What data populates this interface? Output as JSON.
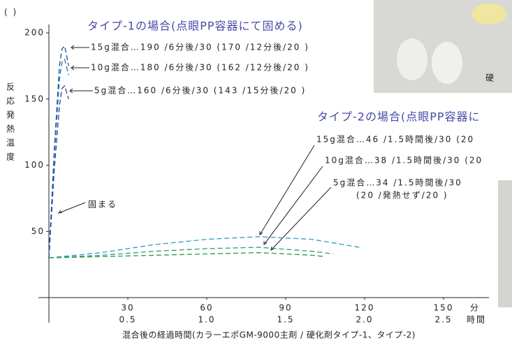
{
  "chart_data": {
    "type": "line",
    "y_unit": "(   )",
    "y_label": "反応発熱温度",
    "x_label": "混合後の経過時間(カラーエポGM-9000主剤 / 硬化剤タイプ-1、タイプ-2)",
    "x_unit": "分",
    "x_unit2": "時間",
    "xlim": [
      0,
      160
    ],
    "ylim": [
      0,
      200
    ],
    "xticks": [
      30,
      60,
      90,
      120,
      150
    ],
    "xtick_hours": [
      "0.5",
      "1.0",
      "1.5",
      "2.0",
      "2.5"
    ],
    "yticks": [
      50,
      100,
      150,
      200
    ],
    "series": [
      {
        "color": "#1a4a9a",
        "x": [
          0,
          2,
          4,
          5,
          6,
          7.5
        ],
        "values": [
          30,
          110,
          175,
          188,
          190,
          175
        ]
      },
      {
        "color": "#1a7ab0",
        "x": [
          0,
          2,
          4,
          5,
          6,
          7.5
        ],
        "values": [
          30,
          105,
          165,
          178,
          180,
          168
        ]
      },
      {
        "color": "#2a3a9a",
        "x": [
          0,
          2,
          4,
          5,
          6,
          7.5
        ],
        "values": [
          30,
          95,
          145,
          158,
          160,
          150
        ]
      },
      {
        "color": "#2aa0c0",
        "x": [
          0,
          20,
          40,
          60,
          80,
          100,
          118
        ],
        "values": [
          30,
          34,
          40,
          44,
          46,
          44,
          38
        ]
      },
      {
        "color": "#2a9a80",
        "x": [
          0,
          20,
          40,
          60,
          80,
          100,
          108
        ],
        "values": [
          30,
          32,
          35,
          37,
          38,
          35,
          33
        ]
      },
      {
        "color": "#2a9a40",
        "x": [
          0,
          20,
          40,
          60,
          80,
          100,
          105
        ],
        "values": [
          30,
          31,
          32,
          33,
          34,
          32,
          31
        ]
      }
    ],
    "annotations": [
      "タイプ-1の場合(点眼PP容器にて固める)",
      "15g混合…190 /6分後/30 (170 /12分後/20 )",
      "10g混合…180 /6分後/30 (162 /12分後/20 )",
      "5g混合…160 /6分後/30 (143 /15分後/20 )",
      "タイプ-2の場合(点眼PP容器に",
      "15g混合…46 /1.5時間後/30 (20",
      "10g混合…38 /1.5時間後/30 (20",
      "5g混合…34 /1.5時間後/30",
      "(20 /発熱せず/20 )",
      "固まる",
      "硬"
    ]
  }
}
